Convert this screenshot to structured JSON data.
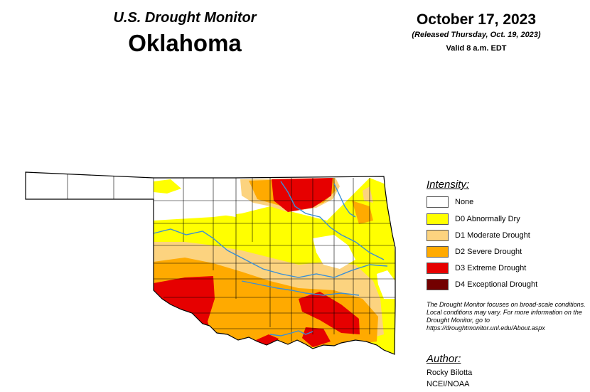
{
  "header": {
    "title_line1": "U.S. Drought Monitor",
    "title_line2": "Oklahoma",
    "date": "October 17, 2023",
    "released": "(Released Thursday, Oct. 19, 2023)",
    "valid": "Valid 8 a.m. EDT"
  },
  "legend": {
    "title": "Intensity:",
    "items": [
      {
        "label": "None",
        "color": "#ffffff"
      },
      {
        "label": "D0 Abnormally Dry",
        "color": "#ffff00"
      },
      {
        "label": "D1 Moderate Drought",
        "color": "#fcd37f"
      },
      {
        "label": "D2 Severe Drought",
        "color": "#ffaa00"
      },
      {
        "label": "D3 Extreme Drought",
        "color": "#e60000"
      },
      {
        "label": "D4 Exceptional Drought",
        "color": "#730000"
      }
    ]
  },
  "note": "The Drought Monitor focuses on broad-scale conditions. Local conditions may vary. For more information on the Drought Monitor, go to https://droughtmonitor.unl.edu/About.aspx",
  "author": {
    "title": "Author:",
    "name": "Rocky Bilotta",
    "org": "NCEI/NOAA"
  },
  "map_colors": {
    "none": "#ffffff",
    "d0": "#ffff00",
    "d1": "#fcd37f",
    "d2": "#ffaa00",
    "d3": "#e60000",
    "river": "#3a8fd6",
    "border": "#000000"
  }
}
